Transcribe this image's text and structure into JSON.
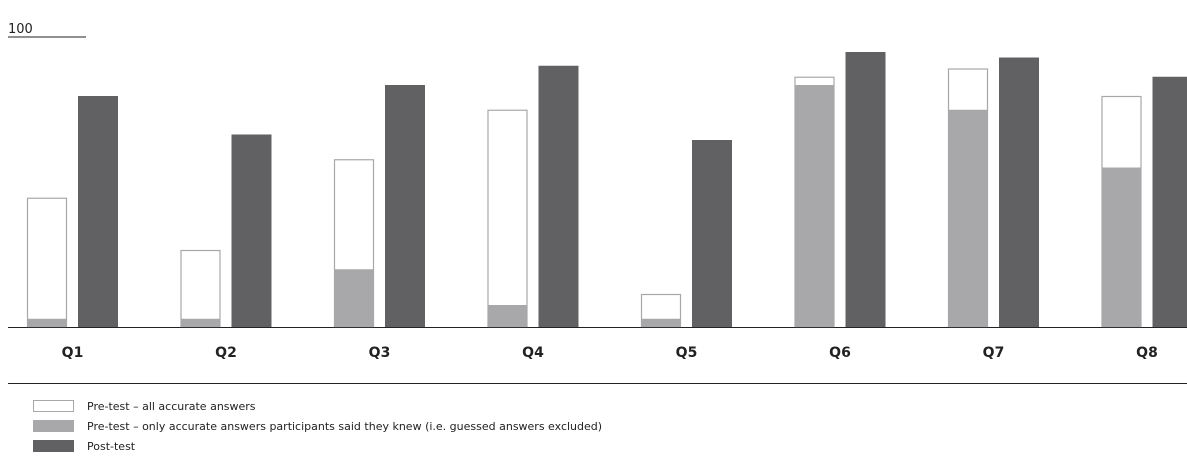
{
  "chart_data": {
    "type": "bar",
    "ytick_top": "100",
    "ylim": [
      0,
      100
    ],
    "categories": [
      "Q1",
      "Q2",
      "Q3",
      "Q4",
      "Q5",
      "Q6",
      "Q7",
      "Q8"
    ],
    "series": [
      {
        "name": "Pre-test – all accurate answers",
        "values": [
          47,
          28,
          61,
          79,
          12,
          91,
          94,
          84
        ],
        "color": "#ffffff",
        "stroke": "#a8a8ab"
      },
      {
        "name": "Pre-test – only accurate answers participants said they knew (i.e. guessed answers excluded)",
        "values": [
          3,
          3,
          21,
          8,
          3,
          88,
          79,
          58
        ],
        "color": "#a8a8ab"
      },
      {
        "name": "Post-test",
        "values": [
          84,
          70,
          88,
          95,
          68,
          100,
          98,
          91
        ],
        "color": "#616163"
      }
    ],
    "grid": false,
    "legend_position": "bottom-left"
  }
}
